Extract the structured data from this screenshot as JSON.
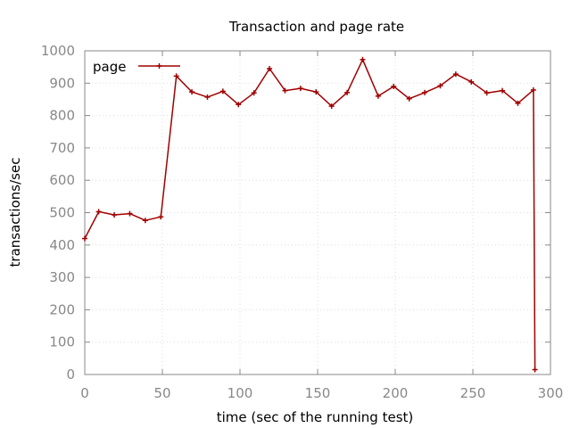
{
  "chart_data": {
    "type": "line",
    "title": "Transaction and page rate",
    "xlabel": "time (sec of the running test)",
    "ylabel": "transactions/sec",
    "xlim": [
      0,
      300
    ],
    "ylim": [
      0,
      1000
    ],
    "x_ticks": [
      "0",
      "50",
      "100",
      "150",
      "200",
      "250",
      "300"
    ],
    "y_ticks": [
      "0",
      "100",
      "200",
      "300",
      "400",
      "500",
      "600",
      "700",
      "800",
      "900",
      "1000"
    ],
    "grid": true,
    "legend_position": "top-left",
    "series": [
      {
        "name": "page",
        "color": "#a00000",
        "marker": "plus",
        "x": [
          0,
          9,
          19,
          29,
          39,
          49,
          59,
          69,
          79,
          89,
          99,
          109,
          119,
          129,
          139,
          149,
          159,
          169,
          179,
          189,
          199,
          209,
          219,
          229,
          239,
          249,
          259,
          269,
          279,
          289,
          290
        ],
        "y": [
          420,
          503,
          493,
          497,
          476,
          487,
          922,
          873,
          857,
          875,
          834,
          870,
          945,
          877,
          884,
          873,
          829,
          871,
          973,
          860,
          890,
          852,
          871,
          892,
          928,
          904,
          870,
          877,
          838,
          879,
          15
        ]
      }
    ]
  }
}
